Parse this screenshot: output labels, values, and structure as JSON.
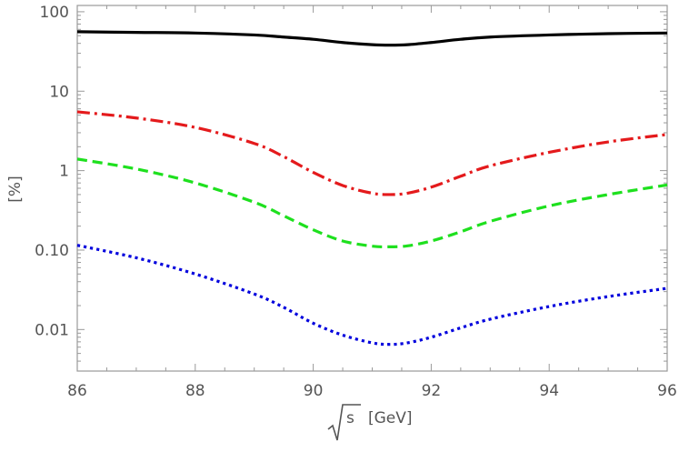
{
  "chart_data": {
    "type": "line",
    "title": "",
    "xlabel_radicand": "s",
    "xlabel_unit": "[GeV]",
    "ylabel": "[%]",
    "xlim": [
      86,
      96
    ],
    "ylim": [
      0.003,
      120
    ],
    "yscale": "log",
    "grid": false,
    "x_ticks": [
      86,
      88,
      90,
      92,
      94,
      96
    ],
    "x_tick_labels": [
      "86",
      "88",
      "90",
      "92",
      "94",
      "96"
    ],
    "y_ticks": [
      0.01,
      0.1,
      1,
      10,
      100
    ],
    "y_tick_labels": [
      "0.01",
      "0.10",
      "1",
      "10",
      "100"
    ],
    "series": [
      {
        "color": "#000000",
        "style": "solid",
        "x": [
          86,
          87,
          88,
          89,
          89.5,
          90,
          90.5,
          91,
          91.3,
          91.6,
          92,
          92.5,
          93,
          94,
          95,
          96
        ],
        "y": [
          56,
          55,
          54,
          51,
          48,
          45,
          41,
          38.5,
          38,
          38.5,
          41,
          45,
          48,
          51,
          53,
          54
        ]
      },
      {
        "color": "#e41a1c",
        "style": "dashdot",
        "x": [
          86,
          87,
          88,
          89,
          89.5,
          90,
          90.5,
          91,
          91.3,
          91.6,
          92,
          92.5,
          93,
          94,
          95,
          96
        ],
        "y": [
          5.5,
          4.6,
          3.5,
          2.2,
          1.5,
          0.95,
          0.65,
          0.52,
          0.5,
          0.52,
          0.62,
          0.85,
          1.15,
          1.7,
          2.3,
          2.85
        ]
      },
      {
        "color": "#1ee01e",
        "style": "dashed",
        "x": [
          86,
          87,
          88,
          89,
          89.5,
          90,
          90.5,
          91,
          91.3,
          91.6,
          92,
          92.5,
          93,
          94,
          95,
          96
        ],
        "y": [
          1.4,
          1.05,
          0.7,
          0.4,
          0.27,
          0.18,
          0.13,
          0.112,
          0.11,
          0.113,
          0.13,
          0.17,
          0.23,
          0.36,
          0.5,
          0.66
        ]
      },
      {
        "color": "#0000dd",
        "style": "dotted",
        "x": [
          86,
          87,
          88,
          89,
          89.5,
          90,
          90.5,
          91,
          91.3,
          91.6,
          92,
          92.5,
          93,
          94,
          95,
          96
        ],
        "y": [
          0.115,
          0.08,
          0.05,
          0.028,
          0.019,
          0.012,
          0.0085,
          0.0068,
          0.0065,
          0.0068,
          0.008,
          0.0105,
          0.0135,
          0.0195,
          0.026,
          0.033
        ]
      }
    ]
  }
}
